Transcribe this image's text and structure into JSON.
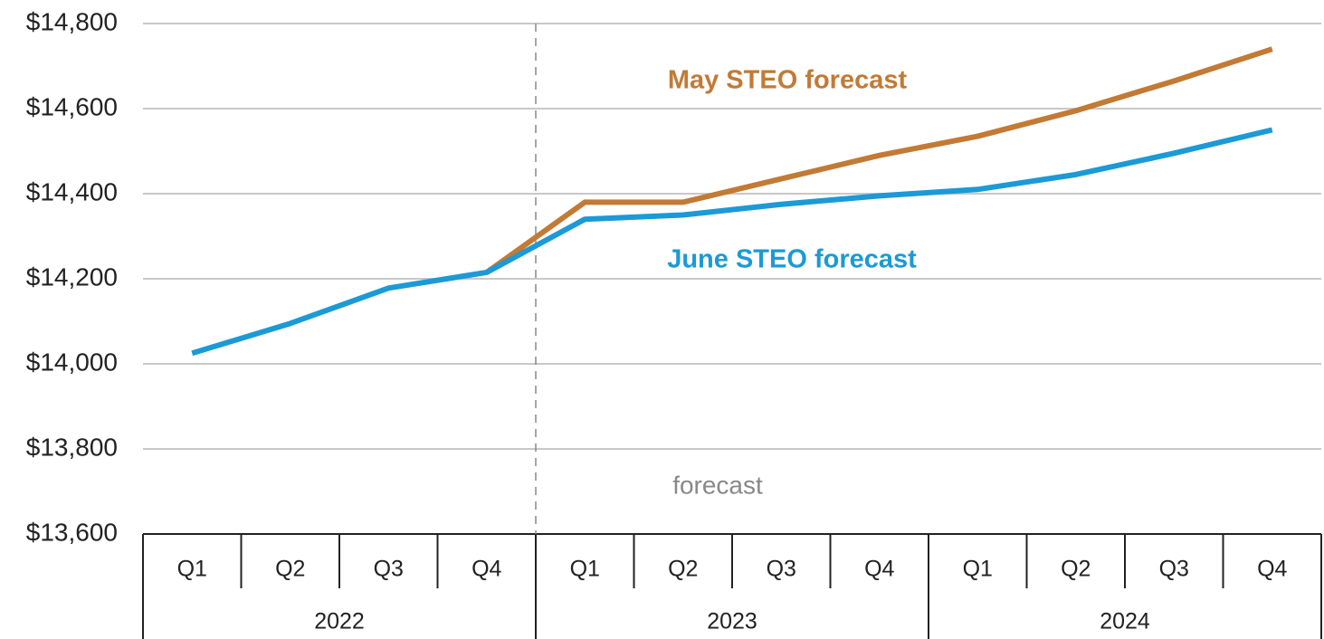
{
  "chart_data": {
    "type": "line",
    "categories": [
      "Q1",
      "Q2",
      "Q3",
      "Q4",
      "Q1",
      "Q2",
      "Q3",
      "Q4",
      "Q1",
      "Q2",
      "Q3",
      "Q4"
    ],
    "years": [
      "2022",
      "2023",
      "2024"
    ],
    "series": [
      {
        "name": "May STEO forecast",
        "color": "#c27a35",
        "values": [
          null,
          null,
          null,
          14215,
          14380,
          14380,
          14435,
          14490,
          14535,
          14595,
          14665,
          14740
        ]
      },
      {
        "name": "June STEO forecast",
        "color": "#1b9ad6",
        "values": [
          14025,
          14095,
          14178,
          14215,
          14340,
          14350,
          14375,
          14395,
          14410,
          14445,
          14495,
          14550
        ]
      }
    ],
    "annotations": [
      "forecast"
    ],
    "ylim": [
      13600,
      14800
    ],
    "yticks": [
      {
        "value": 13600,
        "label": "$13,600"
      },
      {
        "value": 13800,
        "label": "$13,800"
      },
      {
        "value": 14000,
        "label": "$14,000"
      },
      {
        "value": 14200,
        "label": "$14,200"
      },
      {
        "value": 14400,
        "label": "$14,400"
      },
      {
        "value": 14600,
        "label": "$14,600"
      },
      {
        "value": 14800,
        "label": "$14,800"
      }
    ],
    "grid": true
  }
}
